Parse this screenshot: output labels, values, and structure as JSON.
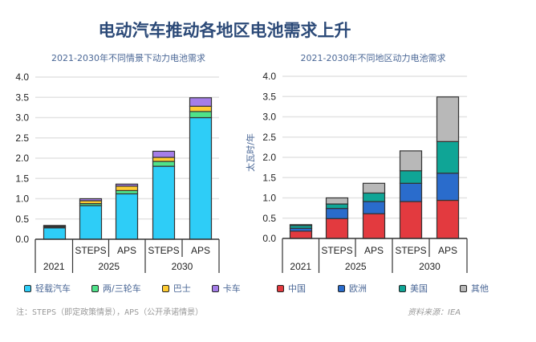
{
  "title": "电动汽车推动各地区电池需求上升",
  "note": "注：STEPS（即定政策情景），APS（公开承诺情景）",
  "source": "资料来源：IEA",
  "chart_data": [
    {
      "type": "bar",
      "stacked": true,
      "title": "2021-2030年不同情景下动力电池需求",
      "ylabel": "太瓦时/年",
      "ylim": [
        0,
        4.0
      ],
      "yticks": [
        "0.0",
        "0.5",
        "1.0",
        "1.5",
        "2.0",
        "2.5",
        "3.0",
        "3.5",
        "4.0"
      ],
      "grid": true,
      "legend_position": "bottom",
      "categories": [
        {
          "sub": "",
          "group": "2021"
        },
        {
          "sub": "STEPS",
          "group": "2025"
        },
        {
          "sub": "APS",
          "group": "2025"
        },
        {
          "sub": "STEPS",
          "group": "2030"
        },
        {
          "sub": "APS",
          "group": "2030"
        }
      ],
      "groups": [
        "2021",
        "2025",
        "2030"
      ],
      "series": [
        {
          "name": "轻载汽车",
          "color": "#2ecdf7",
          "values": [
            0.28,
            0.83,
            1.12,
            1.8,
            3.0
          ]
        },
        {
          "name": "两/三轮车",
          "color": "#4fe38a",
          "values": [
            0.02,
            0.05,
            0.08,
            0.12,
            0.15
          ]
        },
        {
          "name": "巴士",
          "color": "#ffcc33",
          "values": [
            0.02,
            0.07,
            0.11,
            0.1,
            0.13
          ]
        },
        {
          "name": "卡车",
          "color": "#a57ee8",
          "values": [
            0.02,
            0.05,
            0.05,
            0.15,
            0.21
          ]
        }
      ]
    },
    {
      "type": "bar",
      "stacked": true,
      "title": "2021-2030年不同地区动力电池需求",
      "ylabel": "太瓦时/年",
      "ylim": [
        0,
        4.0
      ],
      "yticks": [
        "0.0",
        "0.5",
        "1.0",
        "1.5",
        "2.0",
        "2.5",
        "3.0",
        "3.5",
        "4.0"
      ],
      "grid": true,
      "legend_position": "bottom",
      "categories": [
        {
          "sub": "",
          "group": "2021"
        },
        {
          "sub": "STEPS",
          "group": "2025"
        },
        {
          "sub": "APS",
          "group": "2025"
        },
        {
          "sub": "STEPS",
          "group": "2030"
        },
        {
          "sub": "APS",
          "group": "2030"
        }
      ],
      "groups": [
        "2021",
        "2025",
        "2030"
      ],
      "series": [
        {
          "name": "中国",
          "color": "#e33a3f",
          "values": [
            0.18,
            0.49,
            0.61,
            0.91,
            0.94
          ]
        },
        {
          "name": "欧洲",
          "color": "#2a6ccc",
          "values": [
            0.07,
            0.25,
            0.3,
            0.45,
            0.67
          ]
        },
        {
          "name": "美国",
          "color": "#0fa596",
          "values": [
            0.07,
            0.11,
            0.21,
            0.31,
            0.78
          ]
        },
        {
          "name": "其他",
          "color": "#b8b8b8",
          "values": [
            0.02,
            0.15,
            0.24,
            0.49,
            1.1
          ]
        }
      ]
    }
  ]
}
